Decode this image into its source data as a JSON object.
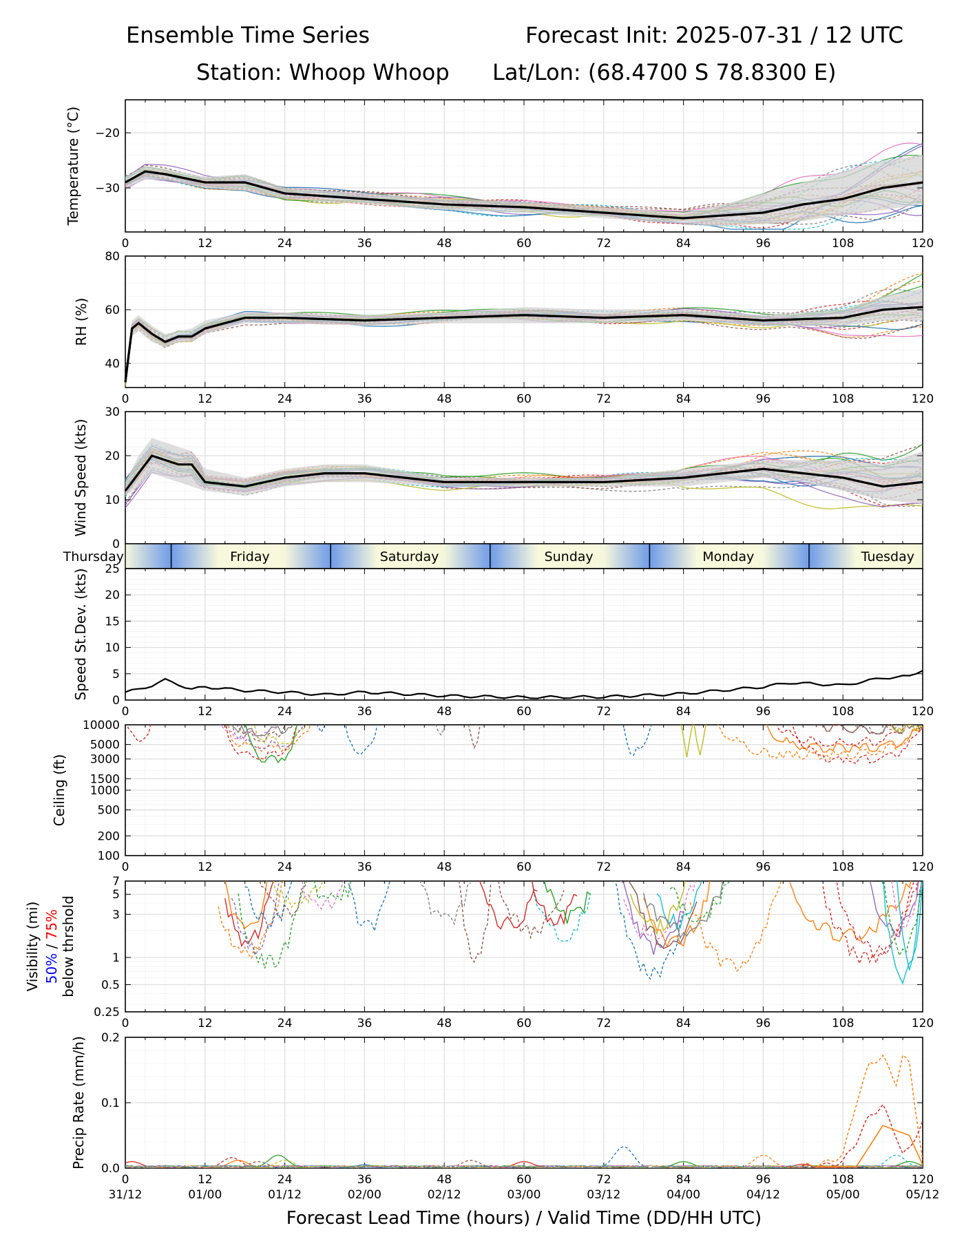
{
  "header": {
    "title_left": "Ensemble Time Series",
    "title_right": "Forecast Init: 2025-07-31 / 12 UTC",
    "station": "Station: Whoop Whoop",
    "latlon": "Lat/Lon: (68.4700 S 78.8300 E)"
  },
  "colors": {
    "mean_line": "#000000",
    "spread_band": "#d3d3d3",
    "grid": "#e6e6e6",
    "daynight_dark": "#6f9be8",
    "daynight_light": "#f8f8dc",
    "members": [
      "#1f77b4",
      "#ff7f0e",
      "#2ca02c",
      "#d62728",
      "#9467bd",
      "#8c564b",
      "#e377c2",
      "#7f7f7f",
      "#bcbd22",
      "#17becf"
    ]
  },
  "x_axis": {
    "lead_hours": [
      "0",
      "12",
      "24",
      "36",
      "48",
      "60",
      "72",
      "84",
      "96",
      "108",
      "120"
    ],
    "valid_times": [
      "31/12",
      "01/00",
      "01/12",
      "02/00",
      "02/12",
      "03/00",
      "03/12",
      "04/00",
      "04/12",
      "05/00",
      "05/12"
    ],
    "xlabel": "Forecast Lead Time (hours) / Valid Time (DD/HH UTC)"
  },
  "day_strip": {
    "days": [
      {
        "label": "Thursday",
        "hour": 0
      },
      {
        "label": "Friday",
        "hour": 18.75
      },
      {
        "label": "Saturday",
        "hour": 42.75
      },
      {
        "label": "Sunday",
        "hour": 66.75
      },
      {
        "label": "Monday",
        "hour": 90.75
      },
      {
        "label": "Tuesday",
        "hour": 114.75
      }
    ],
    "dividers": [
      6.9,
      30.9,
      54.9,
      78.9,
      102.9
    ]
  },
  "panels": {
    "temperature": {
      "ylabel": "Temperature (°C)",
      "ticks": [
        "−20",
        "−30"
      ]
    },
    "rh": {
      "ylabel": "RH (%)",
      "ticks": [
        "80",
        "60",
        "40"
      ]
    },
    "wind": {
      "ylabel": "Wind Speed (kts)",
      "ticks": [
        "30",
        "20",
        "10",
        "0"
      ]
    },
    "stdev": {
      "ylabel": "Speed St.Dev. (kts)",
      "ticks": [
        "25",
        "20",
        "15",
        "10",
        "5",
        "0"
      ]
    },
    "ceiling": {
      "ylabel": "Ceiling (ft)",
      "ticks": [
        "10000",
        "5000",
        "3000",
        "1500",
        "1000",
        "500",
        "200",
        "100"
      ]
    },
    "visibility": {
      "ylabel_line1": "Visibility (mi)",
      "ylabel_50": "50%",
      "ylabel_sep": " / ",
      "ylabel_75": "75%",
      "ylabel_line3": "below thrshold",
      "ticks": [
        "7",
        "5",
        "3",
        "1",
        "0.5",
        "0.25"
      ]
    },
    "precip": {
      "ylabel": "Precip Rate (mm/h)",
      "ticks": [
        "0.2",
        "0.1",
        "0.0"
      ]
    }
  },
  "chart_data": [
    {
      "type": "line",
      "ylabel": "Temperature (°C)",
      "ylim": [
        -38,
        -14
      ],
      "x": [
        0,
        3,
        6,
        12,
        18,
        24,
        36,
        48,
        60,
        72,
        84,
        90,
        96,
        102,
        108,
        114,
        120
      ],
      "series": [
        {
          "values": [
            -29,
            -27,
            -27.5,
            -29,
            -29,
            -31,
            -32,
            -33,
            -33.5,
            -34.5,
            -35.5,
            -35,
            -34.5,
            -33,
            -32,
            -30,
            -29
          ]
        }
      ],
      "spread": {
        "lower": [
          -30,
          -28.5,
          -28.5,
          -30,
          -30.5,
          -32,
          -33,
          -34,
          -34.5,
          -35.5,
          -36.5,
          -37,
          -36.5,
          -36,
          -35,
          -34,
          -33
        ],
        "upper": [
          -28,
          -26,
          -26.5,
          -28,
          -27.5,
          -30,
          -31,
          -32,
          -32.5,
          -33.5,
          -34.5,
          -33,
          -31,
          -29,
          -27,
          -25,
          -24
        ]
      },
      "grid": true
    },
    {
      "type": "line",
      "ylabel": "RH (%)",
      "ylim": [
        31,
        80
      ],
      "x": [
        0,
        1,
        2,
        4,
        6,
        8,
        10,
        12,
        18,
        24,
        36,
        48,
        60,
        72,
        84,
        96,
        108,
        114,
        120
      ],
      "series": [
        {
          "values": [
            33,
            53,
            55,
            51,
            48,
            50,
            50,
            53,
            57,
            57,
            56,
            57,
            58,
            57,
            58,
            56,
            57,
            60,
            61
          ]
        }
      ],
      "spread": {
        "lower": [
          33,
          50,
          52,
          48,
          46,
          48,
          48,
          51,
          55,
          55,
          54,
          55,
          55,
          55,
          56,
          54,
          54,
          56,
          56
        ],
        "upper": [
          35,
          56,
          58,
          54,
          51,
          52,
          53,
          56,
          59,
          59,
          58,
          59,
          61,
          60,
          60,
          58,
          60,
          65,
          68
        ]
      },
      "grid": true
    },
    {
      "type": "line",
      "ylabel": "Wind Speed (kts)",
      "ylim": [
        0,
        30
      ],
      "x": [
        0,
        2,
        4,
        6,
        8,
        10,
        12,
        18,
        24,
        30,
        36,
        48,
        60,
        72,
        84,
        96,
        102,
        108,
        114,
        120
      ],
      "series": [
        {
          "values": [
            12,
            16,
            20,
            19,
            18,
            18,
            14,
            13,
            15,
            16,
            16,
            14,
            14,
            14,
            15,
            17,
            16,
            15,
            13,
            14
          ]
        }
      ],
      "spread": {
        "lower": [
          11,
          13,
          16,
          15,
          14,
          13,
          12,
          11,
          13,
          14,
          14,
          13,
          13,
          13,
          13,
          15,
          14,
          12,
          10,
          9
        ],
        "upper": [
          14,
          20,
          24,
          23,
          22,
          21,
          17,
          15,
          17,
          18,
          18,
          15,
          15,
          15,
          17,
          19,
          19,
          19,
          18,
          21
        ]
      },
      "grid": true
    },
    {
      "type": "line",
      "ylabel": "Speed St.Dev. (kts)",
      "ylim": [
        0,
        25
      ],
      "x": [
        0,
        2,
        4,
        6,
        8,
        10,
        12,
        18,
        24,
        30,
        36,
        48,
        60,
        72,
        84,
        96,
        100,
        108,
        114,
        118,
        120
      ],
      "series": [
        {
          "values": [
            1.5,
            2,
            2.8,
            3.8,
            3,
            2,
            2.5,
            1.8,
            1.5,
            1,
            1.5,
            0.8,
            0.5,
            0.6,
            1.2,
            2.5,
            3.3,
            2.8,
            4.2,
            4.5,
            5.8
          ]
        }
      ],
      "grid": true
    },
    {
      "type": "line",
      "ylabel": "Ceiling (ft)",
      "ylim": [
        100,
        10000
      ],
      "x": [
        15,
        18,
        21,
        24,
        27
      ],
      "series": [
        {
          "values": [
            10000,
            5000,
            3500,
            3000,
            10000
          ]
        },
        {
          "values": [
            10000,
            3500,
            5000,
            10000,
            10000
          ]
        }
      ],
      "grid": true
    },
    {
      "type": "line",
      "ylabel": "Visibility (mi)",
      "ylim": [
        0.25,
        7
      ],
      "x": [
        14,
        16,
        18,
        20,
        22,
        24,
        26
      ],
      "series": [
        {
          "values": [
            7,
            2,
            1.1,
            1.3,
            3,
            7,
            7
          ]
        },
        {
          "values": [
            7,
            3,
            1.5,
            1,
            0.9,
            2,
            7
          ]
        }
      ],
      "grid": true
    },
    {
      "type": "line",
      "ylabel": "Precip Rate (mm/h)",
      "ylim": [
        0,
        0.2
      ],
      "x": [
        100,
        104,
        106,
        108,
        110,
        112,
        114,
        116,
        117,
        118,
        120
      ],
      "series": [
        {
          "values": [
            0,
            0.005,
            0.01,
            0.02,
            0.1,
            0.16,
            0.17,
            0.13,
            0.17,
            0.16,
            0.01
          ]
        },
        {
          "values": [
            0,
            0.003,
            0.005,
            0.01,
            0.04,
            0.08,
            0.095,
            0.05,
            0.02,
            0.03,
            0.07
          ]
        }
      ],
      "grid": true
    }
  ]
}
